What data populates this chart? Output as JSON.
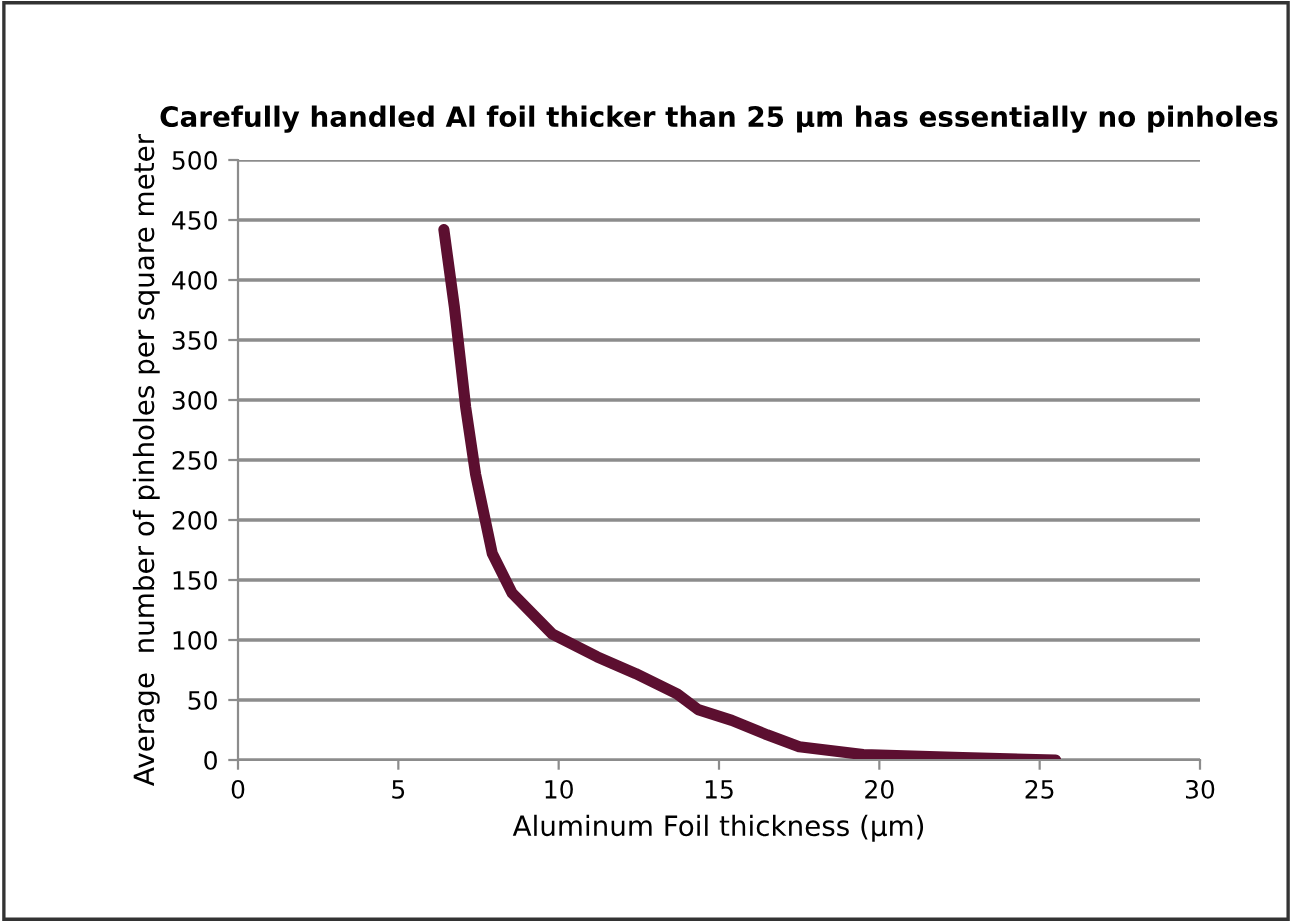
{
  "chart_data": {
    "type": "line",
    "title": "Carefully handled Al foil thicker than 25 µm has essentially no pinholes",
    "xlabel": "Aluminum Foil thickness (µm)",
    "ylabel": "Average  number of pinholes per square meter",
    "series": [
      {
        "color": "#5c0f30",
        "x": [
          6.42,
          6.75,
          7.1,
          7.41,
          7.93,
          8.55,
          9.8,
          11.2,
          12.4,
          13.7,
          14.35,
          15.4,
          16.5,
          17.5,
          19.5,
          22.6,
          25.5
        ],
        "values": [
          442,
          377,
          294,
          238,
          172,
          139,
          105,
          86,
          72,
          55,
          42,
          33,
          21,
          11,
          4.5,
          2,
          0
        ]
      }
    ],
    "xlim": [
      0,
      30
    ],
    "xticks": [
      0,
      5,
      10,
      15,
      20,
      25,
      30
    ],
    "ylim": [
      0,
      500
    ],
    "yticks": [
      0,
      50,
      100,
      150,
      200,
      250,
      300,
      350,
      400,
      450,
      500
    ],
    "grid": "y",
    "legend": false,
    "marker": "none",
    "line_style": "solid"
  }
}
